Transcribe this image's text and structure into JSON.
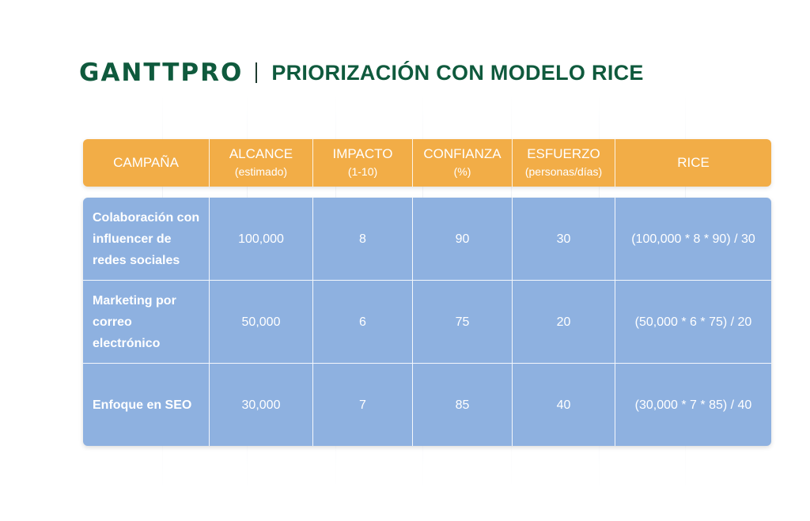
{
  "brand": {
    "logo": "GANTTPRO",
    "title": "PRIORIZACIÓN CON MODELO RICE",
    "logo_color": "#0f5a3d"
  },
  "table": {
    "header_color": "#f2ad47",
    "body_color": "#8eb1e0",
    "columns": [
      {
        "label": "CAMPAÑA",
        "sub": ""
      },
      {
        "label": "ALCANCE",
        "sub": "(estimado)"
      },
      {
        "label": "IMPACTO",
        "sub": "(1-10)"
      },
      {
        "label": "CONFIANZA",
        "sub": "(%)"
      },
      {
        "label": "ESFUERZO",
        "sub": "(personas/días)"
      },
      {
        "label": "RICE",
        "sub": ""
      }
    ],
    "rows": [
      {
        "campaign": "Colaboración con influencer de redes sociales",
        "reach": "100,000",
        "impact": "8",
        "confidence": "90",
        "effort": "30",
        "rice": "(100,000 * 8 * 90) / 30"
      },
      {
        "campaign": "Marketing por correo electrónico",
        "reach": "50,000",
        "impact": "6",
        "confidence": "75",
        "effort": "20",
        "rice": "(50,000 * 6 * 75) / 20"
      },
      {
        "campaign": "Enfoque en SEO",
        "reach": "30,000",
        "impact": "7",
        "confidence": "85",
        "effort": "40",
        "rice": "(30,000 * 7 * 85) / 40"
      }
    ]
  }
}
